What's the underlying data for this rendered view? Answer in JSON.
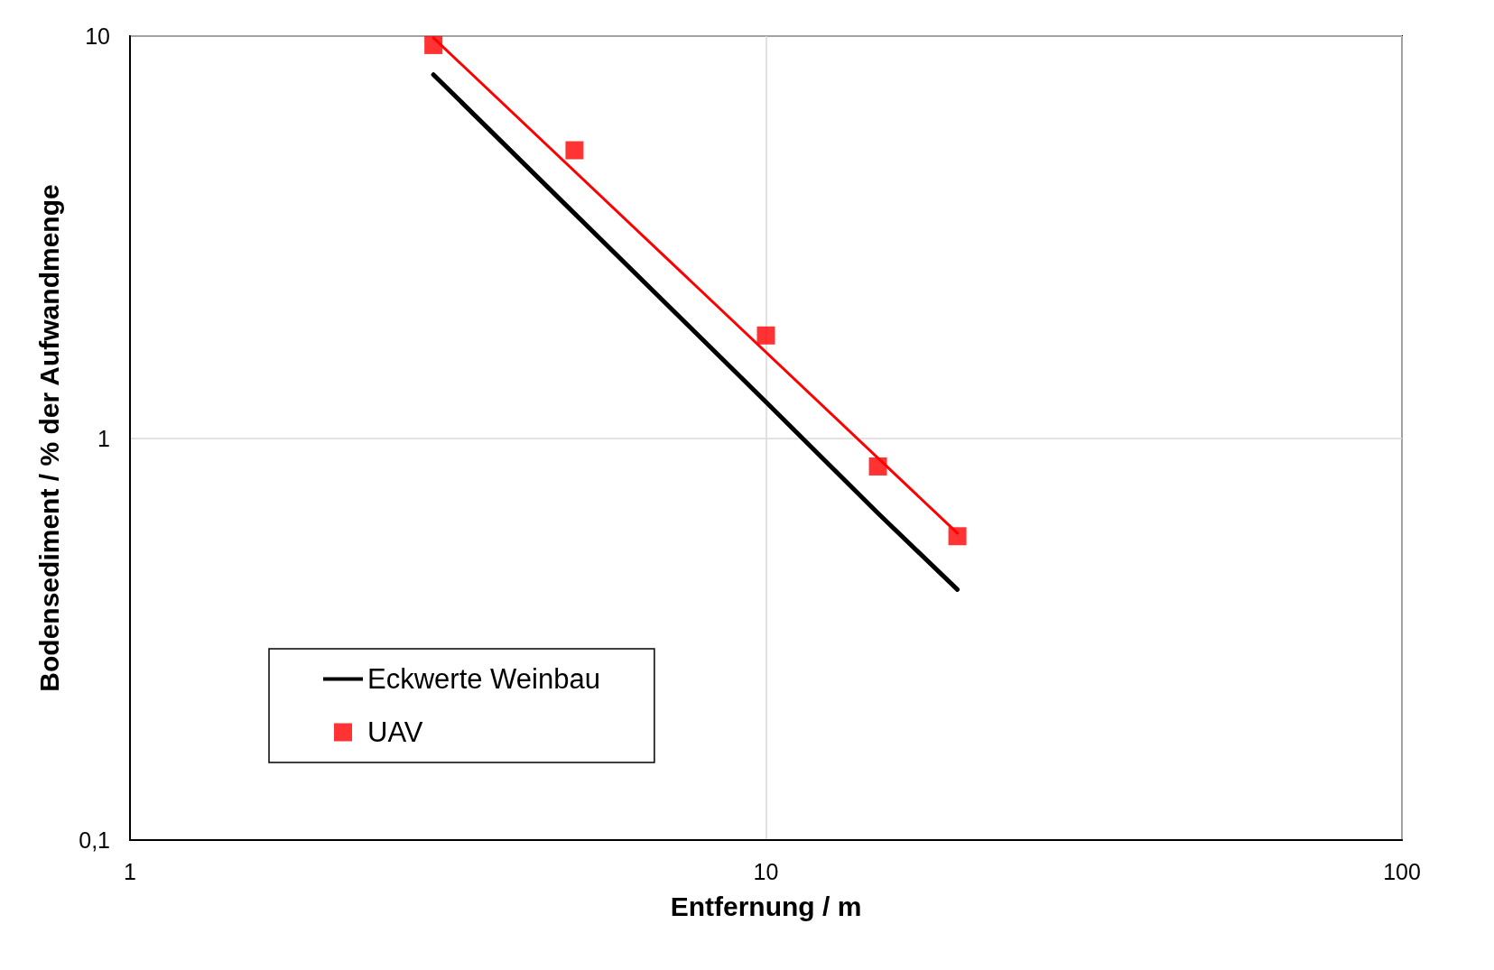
{
  "chart_data": {
    "type": "line",
    "xlabel": "Entfernung / m",
    "ylabel": "Bodensediment / % der Aufwandmenge",
    "log": "xy",
    "xlim": [
      1,
      100
    ],
    "xticks": [
      1,
      10,
      100
    ],
    "ylim": [
      0.1,
      10
    ],
    "yticks": [
      {
        "value": 0.1,
        "label": "0,1"
      },
      1,
      10
    ],
    "grid": true,
    "legend": "bottom left",
    "series": [
      {
        "name": "Eckwerte Weinbau",
        "type": "line",
        "color": "#000000",
        "marker": "none",
        "x": [
          3,
          5,
          10,
          15,
          20
        ],
        "values": [
          8.02,
          3.62,
          1.23,
          0.65,
          0.42
        ]
      },
      {
        "name": "UAV",
        "type": "scatter",
        "color": "#ff0000",
        "marker": "square",
        "x": [
          3,
          5,
          10,
          15,
          20
        ],
        "values": [
          9.5,
          5.2,
          1.8,
          0.85,
          0.57
        ]
      },
      {
        "color": "#ff0000",
        "marker": "none",
        "x": [
          3,
          20
        ],
        "values": [
          9.9,
          0.58
        ]
      }
    ]
  }
}
